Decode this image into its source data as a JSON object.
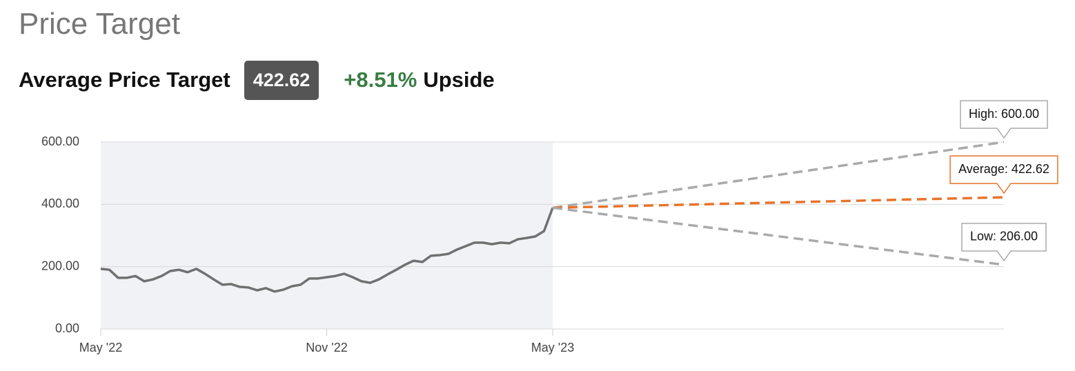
{
  "header": {
    "title": "Price Target",
    "label": "Average Price Target",
    "average": "422.62",
    "change": "+8.51%",
    "change_note": "Upside"
  },
  "chart_data": {
    "type": "line",
    "categories": [
      "May '22",
      null,
      null,
      null,
      null,
      null,
      null,
      null,
      null,
      null,
      null,
      null,
      null,
      null,
      null,
      null,
      null,
      null,
      null,
      null,
      null,
      null,
      null,
      null,
      null,
      null,
      "Nov '22",
      null,
      null,
      null,
      null,
      null,
      null,
      null,
      null,
      null,
      null,
      null,
      null,
      null,
      null,
      null,
      null,
      null,
      null,
      null,
      null,
      null,
      null,
      null,
      null,
      null,
      "May '23"
    ],
    "values": [
      193,
      190,
      164,
      164,
      170,
      153,
      159,
      170,
      186,
      190,
      182,
      193,
      177,
      159,
      142,
      144,
      135,
      133,
      124,
      131,
      120,
      126,
      137,
      142,
      162,
      162,
      166,
      170,
      177,
      166,
      153,
      148,
      159,
      175,
      190,
      206,
      219,
      215,
      235,
      237,
      241,
      255,
      266,
      277,
      277,
      272,
      277,
      275,
      288,
      292,
      297,
      314,
      389
    ],
    "color": "#707070",
    "ylim": [
      0,
      600
    ],
    "yticks": [
      {
        "value": 0,
        "label": "0.00"
      },
      {
        "value": 200,
        "label": "200.00"
      },
      {
        "value": 400,
        "label": "400.00"
      },
      {
        "value": 600,
        "label": "600.00"
      }
    ],
    "grid": true,
    "targets": [
      {
        "value": 600,
        "label": "High: 600.00",
        "color": "#aaaaaa"
      },
      {
        "value": 422.62,
        "label": "Average: 422.62",
        "color": "#e8732a"
      },
      {
        "value": 206,
        "label": "Low: 206.00",
        "color": "#aaaaaa"
      }
    ]
  }
}
